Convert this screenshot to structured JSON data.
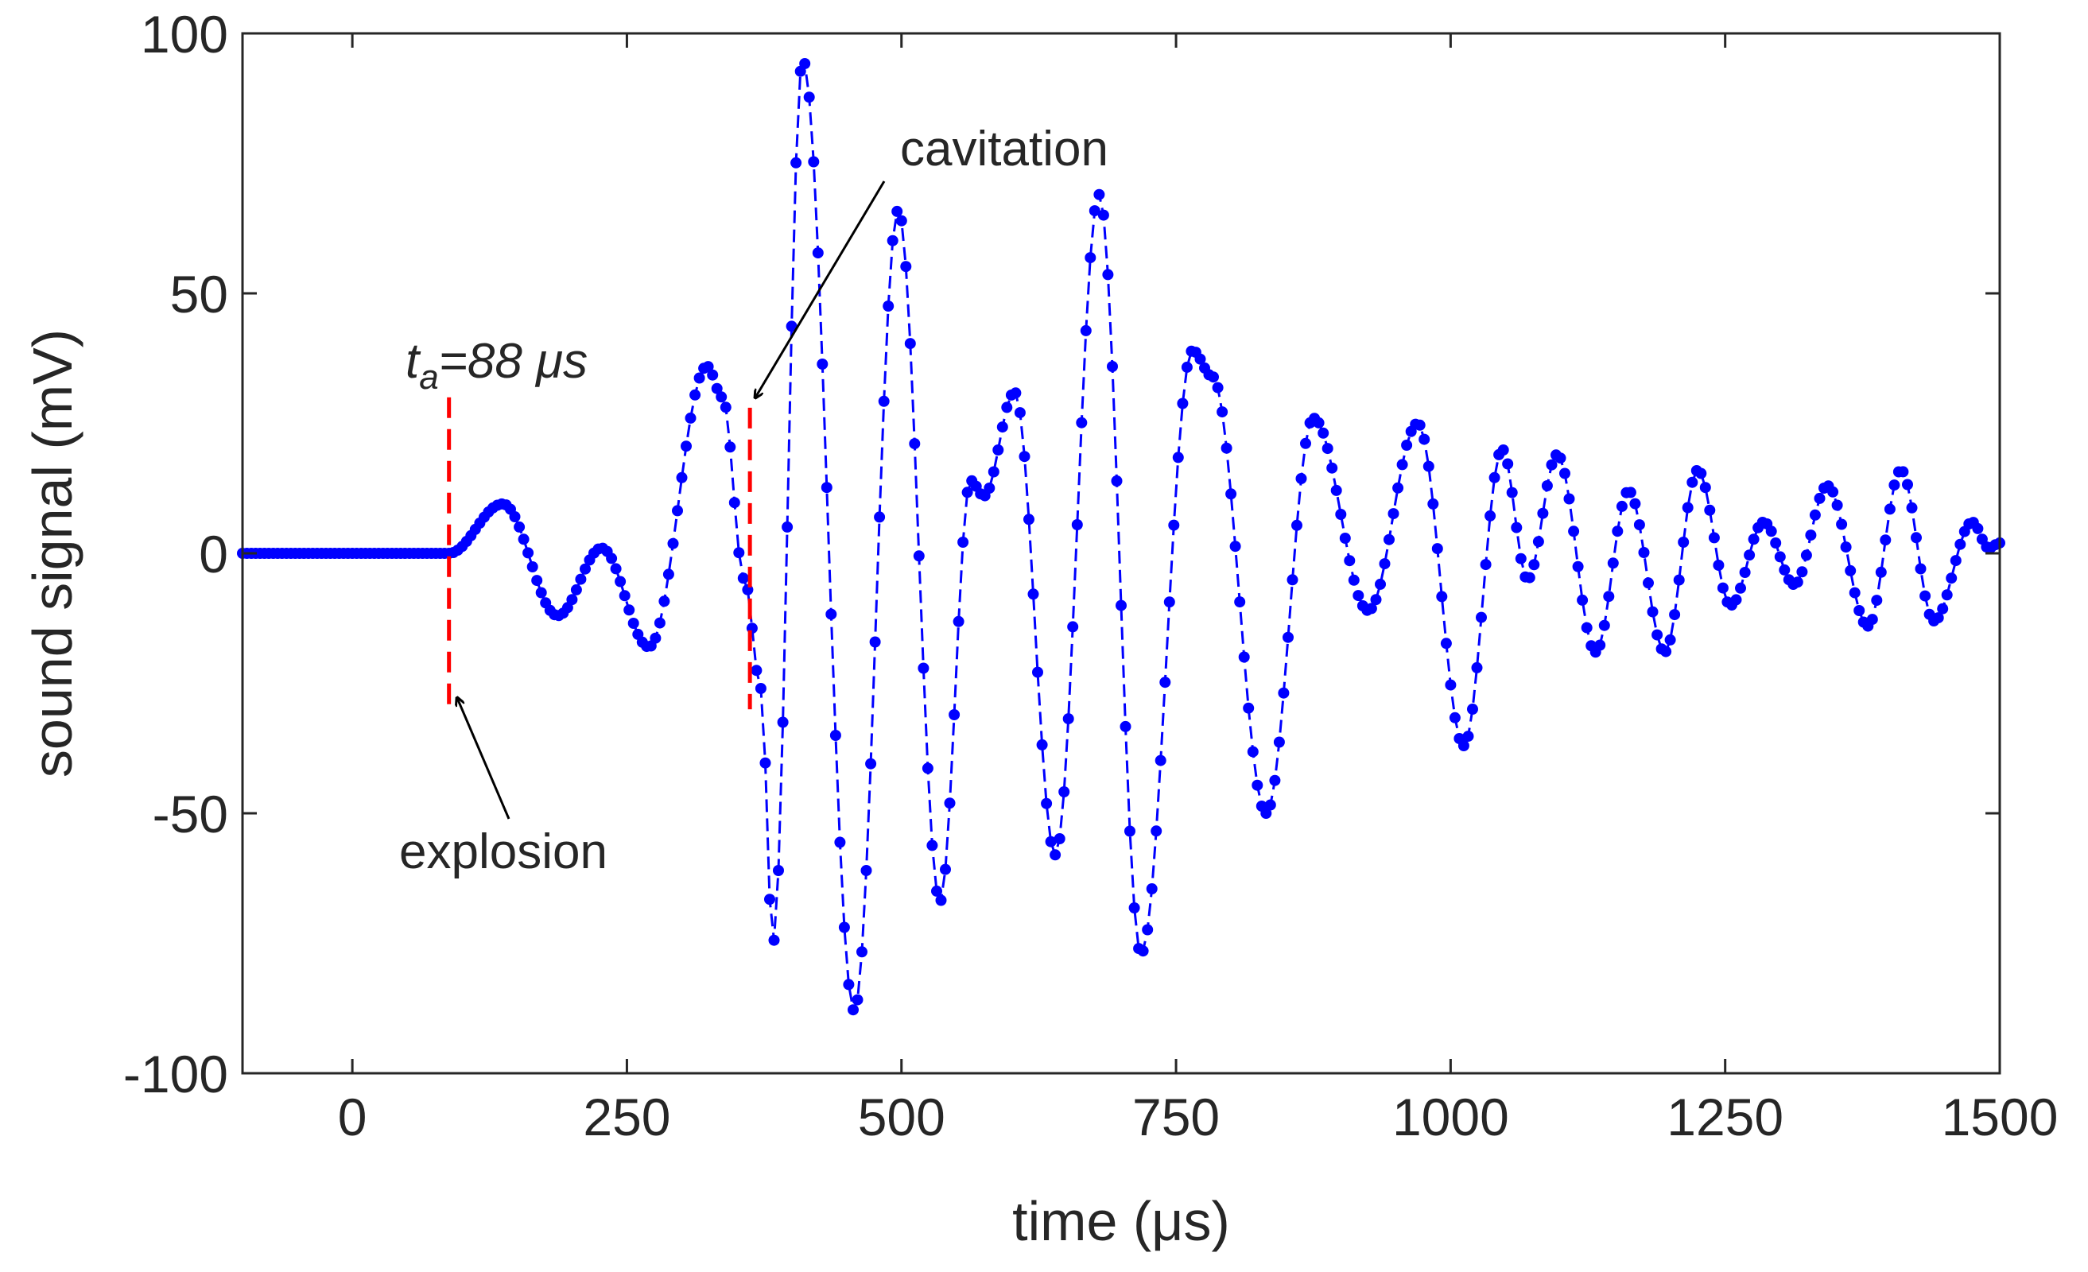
{
  "chart_data": {
    "type": "line",
    "title": "",
    "xlabel": "time (μs)",
    "ylabel": "sound signal (mV)",
    "xlim": [
      -100,
      1500
    ],
    "ylim": [
      -100,
      100
    ],
    "xticks": [
      0,
      250,
      500,
      750,
      1000,
      1250,
      1500
    ],
    "yticks": [
      -100,
      -50,
      0,
      50,
      100
    ],
    "xtick_labels": [
      "0",
      "250",
      "500",
      "750",
      "1000",
      "1250",
      "1500"
    ],
    "ytick_labels": [
      "-100",
      "-50",
      "0",
      "50",
      "100"
    ],
    "grid": false,
    "series": [
      {
        "color": "#0000ff",
        "line_style": "dashed",
        "marker": "dot",
        "sample_interval": 4,
        "x_start": -100,
        "keypoints": [
          [
            -100,
            0
          ],
          [
            88,
            0
          ],
          [
            137,
            9.5
          ],
          [
            187,
            -12
          ],
          [
            227,
            1
          ],
          [
            270,
            -18
          ],
          [
            323,
            36
          ],
          [
            337,
            30
          ],
          [
            357,
            -5
          ],
          [
            372,
            -26
          ],
          [
            383,
            -75
          ],
          [
            410,
            95
          ],
          [
            457,
            -88
          ],
          [
            497,
            66
          ],
          [
            535,
            -67
          ],
          [
            563,
            14
          ],
          [
            575,
            11
          ],
          [
            603,
            31
          ],
          [
            640,
            -58
          ],
          [
            680,
            69
          ],
          [
            718,
            -77
          ],
          [
            765,
            39
          ],
          [
            783,
            34
          ],
          [
            832,
            -50
          ],
          [
            875,
            26
          ],
          [
            925,
            -11
          ],
          [
            970,
            25
          ],
          [
            1012,
            -37
          ],
          [
            1047,
            20
          ],
          [
            1070,
            -5
          ],
          [
            1097,
            19
          ],
          [
            1132,
            -19
          ],
          [
            1162,
            12
          ],
          [
            1195,
            -19
          ],
          [
            1225,
            16
          ],
          [
            1255,
            -10
          ],
          [
            1285,
            6
          ],
          [
            1313,
            -6
          ],
          [
            1343,
            13
          ],
          [
            1380,
            -14
          ],
          [
            1410,
            16
          ],
          [
            1440,
            -13
          ],
          [
            1475,
            6
          ],
          [
            1490,
            1
          ],
          [
            1500,
            2
          ]
        ]
      }
    ],
    "annotations": [
      {
        "label_prefix": "t",
        "label_subscript": "a",
        "label_suffix": "=88 μs",
        "type": "vertical-dashed-line",
        "x": 88,
        "y_range": [
          -30,
          30
        ],
        "color": "#ff0000"
      },
      {
        "type": "vertical-dashed-line",
        "x": 362,
        "y_range": [
          -30,
          28
        ],
        "color": "#ff0000"
      },
      {
        "text": "explosion",
        "type": "arrow-label",
        "arrow_to": [
          88,
          -28
        ]
      },
      {
        "text": "cavitation",
        "type": "arrow-label",
        "arrow_to": [
          362,
          28
        ]
      }
    ]
  }
}
